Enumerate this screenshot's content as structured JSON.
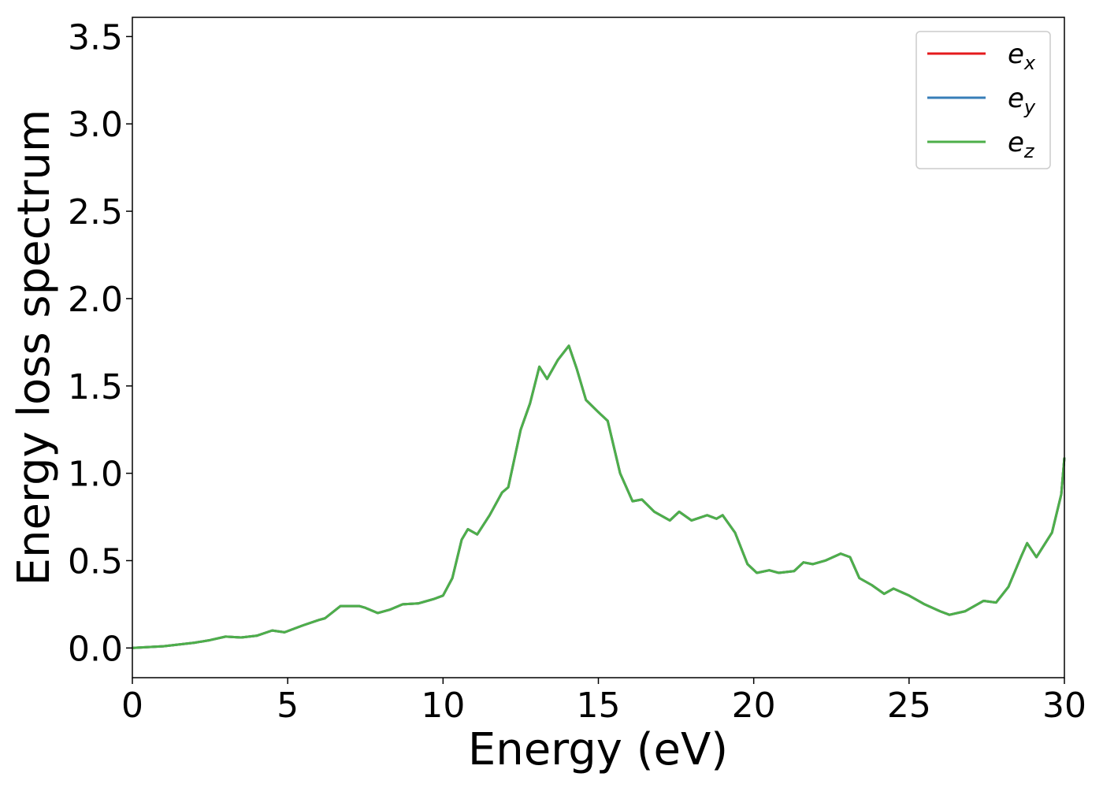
{
  "chart_data": {
    "type": "line",
    "xlabel": "Energy (eV)",
    "ylabel": "Energy loss spectrum",
    "x": [
      0,
      1,
      2,
      2.5,
      3,
      3.5,
      4,
      4.5,
      4.9,
      5.5,
      6,
      6.2,
      6.7,
      7.3,
      7.5,
      7.9,
      8.3,
      8.7,
      9.2,
      9.7,
      10,
      10.3,
      10.6,
      10.8,
      11.1,
      11.5,
      11.9,
      12.1,
      12.5,
      12.8,
      13.1,
      13.35,
      13.7,
      14.05,
      14.3,
      14.6,
      15,
      15.3,
      15.7,
      16.1,
      16.4,
      16.8,
      17.3,
      17.6,
      18,
      18.5,
      18.8,
      19,
      19.4,
      19.8,
      20.1,
      20.5,
      20.8,
      21.3,
      21.6,
      21.9,
      22.3,
      22.8,
      23.1,
      23.4,
      23.8,
      24.2,
      24.5,
      25,
      25.5,
      26,
      26.3,
      26.8,
      27.4,
      27.8,
      28.2,
      28.6,
      28.8,
      29.1,
      29.6,
      29.9,
      30
    ],
    "series": [
      {
        "name": "ex",
        "color": "#e41a1c",
        "values": [
          0,
          0.01,
          0.03,
          0.045,
          0.065,
          0.06,
          0.07,
          0.1,
          0.09,
          0.13,
          0.16,
          0.17,
          0.24,
          0.24,
          0.23,
          0.2,
          0.22,
          0.25,
          0.255,
          0.28,
          0.3,
          0.4,
          0.62,
          0.68,
          0.65,
          0.76,
          0.89,
          0.92,
          1.25,
          1.4,
          1.61,
          1.54,
          1.65,
          1.73,
          1.6,
          1.42,
          1.35,
          1.3,
          1.0,
          0.84,
          0.85,
          0.78,
          0.73,
          0.78,
          0.73,
          0.76,
          0.74,
          0.76,
          0.66,
          0.48,
          0.43,
          0.445,
          0.43,
          0.44,
          0.49,
          0.48,
          0.5,
          0.54,
          0.52,
          0.4,
          0.36,
          0.31,
          0.34,
          0.3,
          0.25,
          0.21,
          0.19,
          0.21,
          0.27,
          0.26,
          0.35,
          0.52,
          0.6,
          0.52,
          0.66,
          0.88,
          1.09
        ]
      },
      {
        "name": "ey",
        "color": "#377eb8",
        "values": [
          0,
          0.01,
          0.03,
          0.045,
          0.065,
          0.06,
          0.07,
          0.1,
          0.09,
          0.13,
          0.16,
          0.17,
          0.24,
          0.24,
          0.23,
          0.2,
          0.22,
          0.25,
          0.255,
          0.28,
          0.3,
          0.4,
          0.62,
          0.68,
          0.65,
          0.76,
          0.89,
          0.92,
          1.25,
          1.4,
          1.61,
          1.54,
          1.65,
          1.73,
          1.6,
          1.42,
          1.35,
          1.3,
          1.0,
          0.84,
          0.85,
          0.78,
          0.73,
          0.78,
          0.73,
          0.76,
          0.74,
          0.76,
          0.66,
          0.48,
          0.43,
          0.445,
          0.43,
          0.44,
          0.49,
          0.48,
          0.5,
          0.54,
          0.52,
          0.4,
          0.36,
          0.31,
          0.34,
          0.3,
          0.25,
          0.21,
          0.19,
          0.21,
          0.27,
          0.26,
          0.35,
          0.52,
          0.6,
          0.52,
          0.66,
          0.88,
          1.09
        ]
      },
      {
        "name": "ez",
        "color": "#4daf4a",
        "values": [
          0,
          0.01,
          0.03,
          0.045,
          0.065,
          0.06,
          0.07,
          0.1,
          0.09,
          0.13,
          0.16,
          0.17,
          0.24,
          0.24,
          0.23,
          0.2,
          0.22,
          0.25,
          0.255,
          0.28,
          0.3,
          0.4,
          0.62,
          0.68,
          0.65,
          0.76,
          0.89,
          0.92,
          1.25,
          1.4,
          1.61,
          1.54,
          1.65,
          1.73,
          1.6,
          1.42,
          1.35,
          1.3,
          1.0,
          0.84,
          0.85,
          0.78,
          0.73,
          0.78,
          0.73,
          0.76,
          0.74,
          0.76,
          0.66,
          0.48,
          0.43,
          0.445,
          0.43,
          0.44,
          0.49,
          0.48,
          0.5,
          0.54,
          0.52,
          0.4,
          0.36,
          0.31,
          0.34,
          0.3,
          0.25,
          0.21,
          0.19,
          0.21,
          0.27,
          0.26,
          0.35,
          0.52,
          0.6,
          0.52,
          0.66,
          0.88,
          1.09
        ]
      }
    ],
    "xlim": [
      0,
      30
    ],
    "xticks": [
      0,
      5,
      10,
      15,
      20,
      25,
      30
    ],
    "ylim": [
      -0.17,
      3.61
    ],
    "yticks": [
      {
        "value": 0,
        "label": "0.0"
      },
      0.5,
      {
        "value": 1,
        "label": "1.0"
      },
      1.5,
      {
        "value": 2,
        "label": "2.0"
      },
      2.5,
      {
        "value": 3,
        "label": "3.0"
      },
      3.5
    ],
    "legend": "upper right",
    "grid": false
  }
}
